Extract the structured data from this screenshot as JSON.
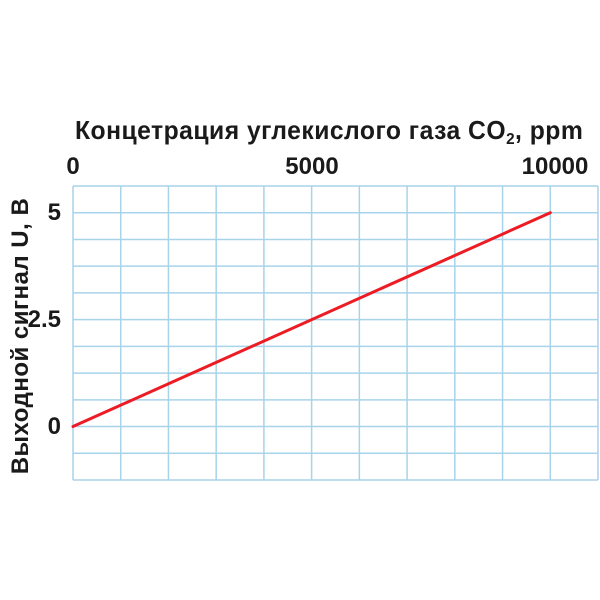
{
  "chart_data": {
    "type": "line",
    "title": "Концетрация углекислого газа CO₂, ppm",
    "title_prefix": "Концетрация углекислого газа CO",
    "title_sub": "2",
    "title_suffix": ", ppm",
    "ylabel": "Выходной сигнал U, В",
    "x_ticks": [
      0,
      5000,
      10000
    ],
    "x_tick_labels": [
      "0",
      "5000",
      "10000"
    ],
    "y_ticks": [
      0,
      2.5,
      5
    ],
    "y_tick_labels": [
      "0",
      "2.5",
      "5"
    ],
    "xlim": [
      0,
      11000
    ],
    "ylim": [
      -1.25,
      5.625
    ],
    "x_grid_step": 1000,
    "y_grid_step": 0.625,
    "grid": true,
    "legend": false,
    "series": [
      {
        "x": [
          0,
          10000
        ],
        "y": [
          0,
          5
        ],
        "color": "#ed1c24"
      }
    ],
    "colors": {
      "grid": "#a8d4ea",
      "line": "#ed1c24",
      "text": "#1a1a1a",
      "background": "#ffffff"
    }
  }
}
